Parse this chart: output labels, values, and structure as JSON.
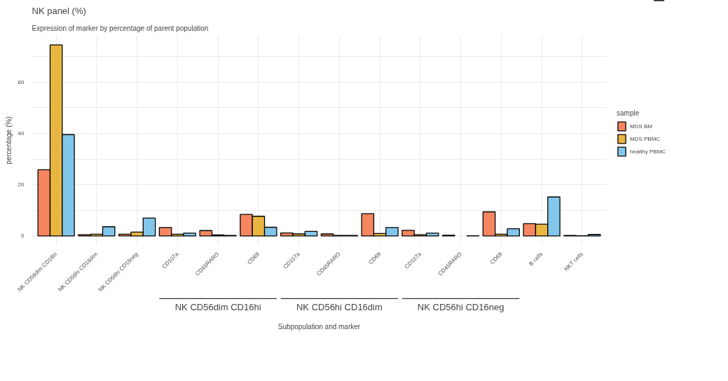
{
  "chart_data": {
    "type": "bar",
    "title": "NK panel (%)",
    "subtitle": "Expression of marker by percentage of parent population",
    "xlabel": "Subpopulation and marker",
    "ylabel": "percentage (%)",
    "legend_title": "sample",
    "categories": [
      "NK CD56dim CD16hi",
      "NK CD56hi CD16dim",
      "NK CD56hi CD16neg",
      "CD107a",
      "CD45RARO",
      "CD69",
      "CD107a",
      "CD45RARO",
      "CD69",
      "CD107a",
      "CD45RARO",
      "CD69",
      "B cells",
      "NKT cells"
    ],
    "series": [
      {
        "name": "MDS BM",
        "color": "#f4794e",
        "values": [
          25.8,
          0.5,
          0.7,
          3.3,
          2.1,
          8.4,
          1.2,
          0.8,
          8.7,
          2.2,
          0.3,
          9.4,
          4.8,
          0.2
        ]
      },
      {
        "name": "MDS PBMC",
        "color": "#e8ae2e",
        "values": [
          74.5,
          0.7,
          1.5,
          0.7,
          0.4,
          7.7,
          0.8,
          0.2,
          1.0,
          0.5,
          null,
          0.7,
          4.6,
          0.1
        ]
      },
      {
        "name": "healthy PBMC",
        "color": "#76c0ea",
        "values": [
          39.5,
          3.6,
          7.0,
          1.1,
          0.2,
          3.4,
          1.8,
          0.2,
          3.3,
          1.1,
          0.1,
          2.8,
          15.2,
          0.6
        ]
      }
    ],
    "annotations": [
      "NK CD56dim CD16hi",
      "NK CD56hi CD16dim",
      "NK CD56hi CD16neg"
    ],
    "ylim": [
      -3.7,
      78.2
    ],
    "yticks": [
      0,
      {
        "value": 10,
        "label": null
      },
      20,
      {
        "value": 30,
        "label": null
      },
      40,
      {
        "value": 50,
        "label": null
      },
      60,
      {
        "value": 70,
        "label": null
      }
    ],
    "grid": true,
    "legend": "right"
  }
}
